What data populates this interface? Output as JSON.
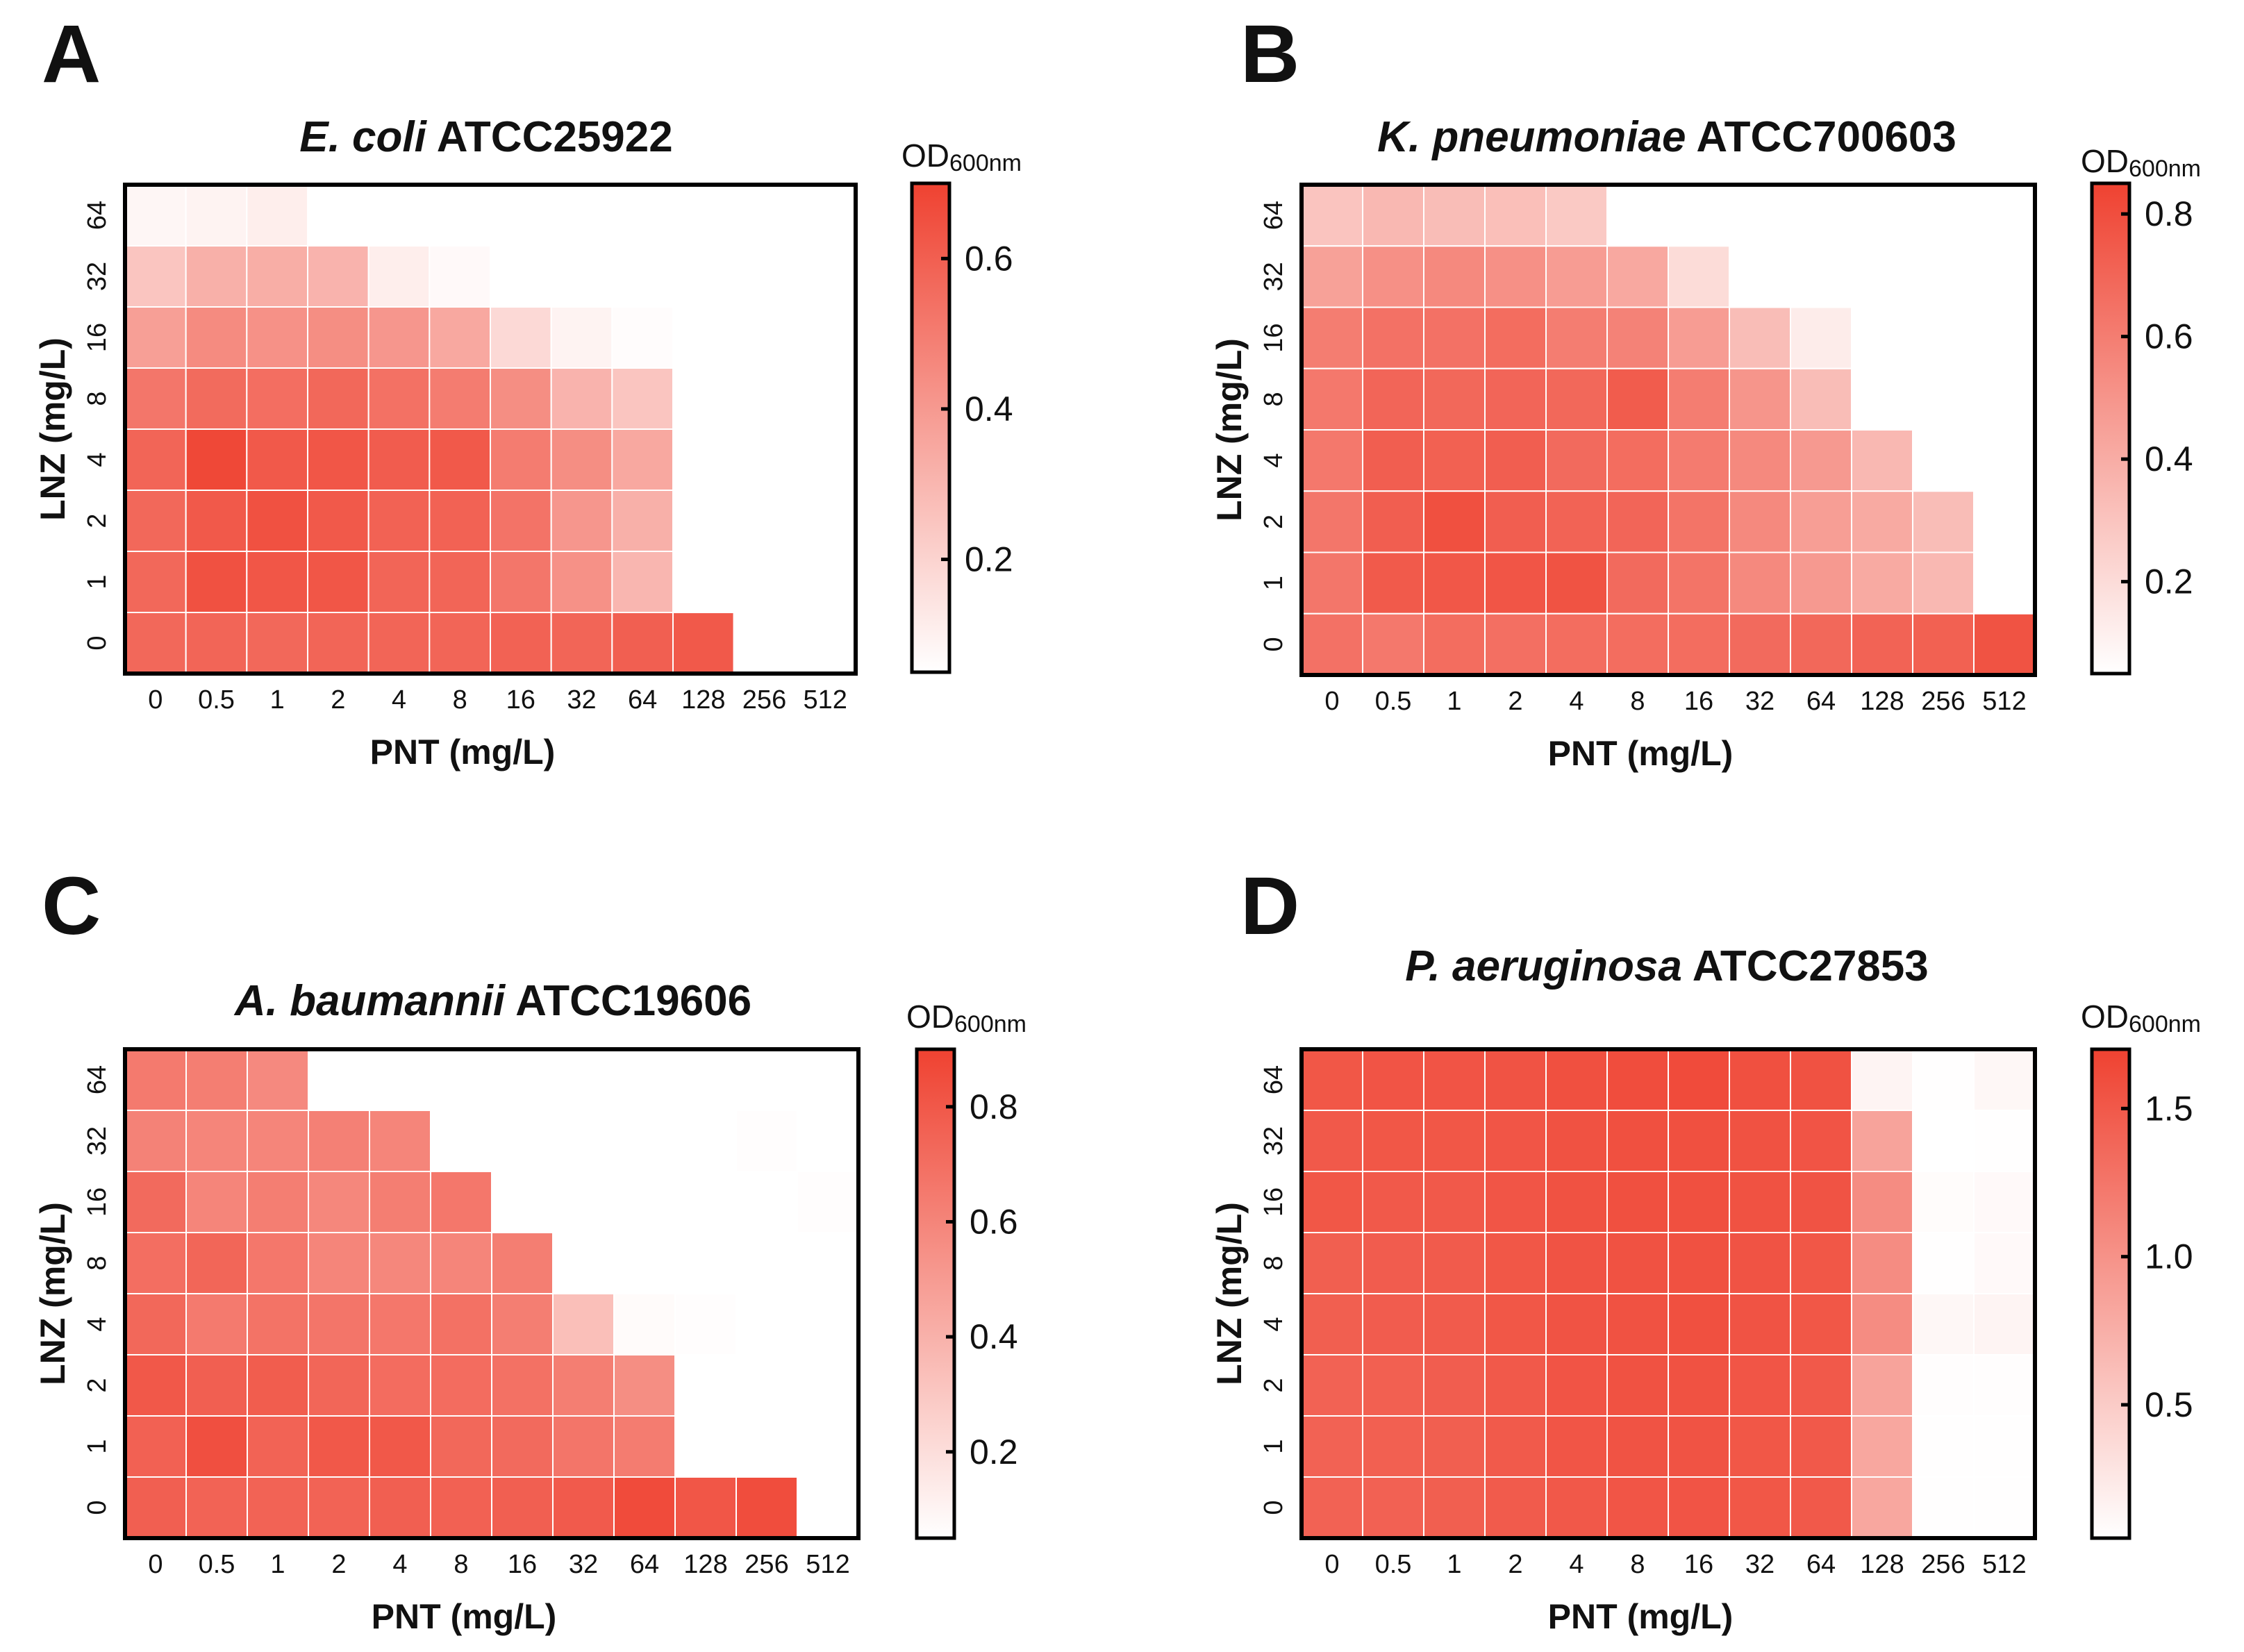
{
  "chart_data": [
    {
      "type": "heatmap",
      "panel": "A",
      "title_italic": "E. coli",
      "title_rest": " ATCC25922",
      "xlabel": "PNT (mg/L)",
      "ylabel": "LNZ (mg/L)",
      "x_categories": [
        "0",
        "0.5",
        "1",
        "2",
        "4",
        "8",
        "16",
        "32",
        "64",
        "128",
        "256",
        "512"
      ],
      "y_categories": [
        "64",
        "32",
        "16",
        "8",
        "4",
        "2",
        "1",
        "0"
      ],
      "colorbar_label": "OD",
      "colorbar_sub": "600nm",
      "colorbar_range": [
        0.05,
        0.7
      ],
      "colorbar_ticks": [
        0.2,
        0.4,
        0.6
      ],
      "values": [
        [
          0.08,
          0.09,
          0.11,
          0.05,
          0.05,
          0.05,
          0.05,
          0.05,
          0.05,
          0.05,
          0.05,
          0.05
        ],
        [
          0.25,
          0.32,
          0.33,
          0.31,
          0.11,
          0.07,
          0.05,
          0.05,
          0.05,
          0.05,
          0.05,
          0.05
        ],
        [
          0.38,
          0.45,
          0.43,
          0.44,
          0.41,
          0.35,
          0.18,
          0.09,
          0.06,
          0.05,
          0.05,
          0.05
        ],
        [
          0.52,
          0.56,
          0.55,
          0.57,
          0.54,
          0.5,
          0.44,
          0.31,
          0.25,
          0.05,
          0.05,
          0.05
        ],
        [
          0.58,
          0.68,
          0.62,
          0.63,
          0.61,
          0.62,
          0.5,
          0.44,
          0.35,
          0.05,
          0.05,
          0.05
        ],
        [
          0.57,
          0.62,
          0.65,
          0.62,
          0.59,
          0.59,
          0.53,
          0.41,
          0.32,
          0.05,
          0.05,
          0.05
        ],
        [
          0.57,
          0.65,
          0.63,
          0.63,
          0.58,
          0.58,
          0.52,
          0.43,
          0.3,
          0.05,
          0.05,
          0.05
        ],
        [
          0.57,
          0.58,
          0.57,
          0.58,
          0.58,
          0.58,
          0.59,
          0.58,
          0.6,
          0.62,
          0.05,
          0.05
        ]
      ]
    },
    {
      "type": "heatmap",
      "panel": "B",
      "title_italic": "K. pneumoniae",
      "title_rest": " ATCC700603",
      "xlabel": "PNT (mg/L)",
      "ylabel": "LNZ (mg/L)",
      "x_categories": [
        "0",
        "0.5",
        "1",
        "2",
        "4",
        "8",
        "16",
        "32",
        "64",
        "128",
        "256",
        "512"
      ],
      "y_categories": [
        "64",
        "32",
        "16",
        "8",
        "4",
        "2",
        "1",
        "0"
      ],
      "colorbar_label": "OD",
      "colorbar_sub": "600nm",
      "colorbar_range": [
        0.05,
        0.85
      ],
      "colorbar_ticks": [
        0.2,
        0.4,
        0.6,
        0.8
      ],
      "values": [
        [
          0.3,
          0.35,
          0.33,
          0.32,
          0.28,
          0.05,
          0.05,
          0.05,
          0.05,
          0.05,
          0.05,
          0.05
        ],
        [
          0.45,
          0.52,
          0.55,
          0.52,
          0.47,
          0.42,
          0.2,
          0.05,
          0.05,
          0.05,
          0.05,
          0.05
        ],
        [
          0.6,
          0.65,
          0.65,
          0.67,
          0.6,
          0.58,
          0.47,
          0.33,
          0.13,
          0.05,
          0.05,
          0.05
        ],
        [
          0.62,
          0.7,
          0.69,
          0.7,
          0.69,
          0.74,
          0.6,
          0.5,
          0.33,
          0.05,
          0.05,
          0.05
        ],
        [
          0.62,
          0.73,
          0.72,
          0.73,
          0.68,
          0.67,
          0.61,
          0.55,
          0.48,
          0.35,
          0.05,
          0.05
        ],
        [
          0.63,
          0.73,
          0.79,
          0.73,
          0.71,
          0.7,
          0.64,
          0.55,
          0.46,
          0.41,
          0.33,
          0.05
        ],
        [
          0.63,
          0.75,
          0.76,
          0.77,
          0.78,
          0.68,
          0.64,
          0.55,
          0.48,
          0.41,
          0.35,
          0.05
        ],
        [
          0.65,
          0.62,
          0.67,
          0.66,
          0.67,
          0.67,
          0.67,
          0.68,
          0.69,
          0.71,
          0.72,
          0.78
        ]
      ]
    },
    {
      "type": "heatmap",
      "panel": "C",
      "title_italic": "A. baumannii",
      "title_rest": " ATCC19606",
      "xlabel": "PNT (mg/L)",
      "ylabel": "LNZ (mg/L)",
      "x_categories": [
        "0",
        "0.5",
        "1",
        "2",
        "4",
        "8",
        "16",
        "32",
        "64",
        "128",
        "256",
        "512"
      ],
      "y_categories": [
        "64",
        "32",
        "16",
        "8",
        "4",
        "2",
        "1",
        "0"
      ],
      "colorbar_label": "OD",
      "colorbar_sub": "600nm",
      "colorbar_range": [
        0.05,
        0.9
      ],
      "colorbar_ticks": [
        0.2,
        0.4,
        0.6,
        0.8
      ],
      "values": [
        [
          0.65,
          0.63,
          0.58,
          0.05,
          0.05,
          0.05,
          0.05,
          0.05,
          0.05,
          0.05,
          0.05,
          0.05
        ],
        [
          0.61,
          0.6,
          0.6,
          0.62,
          0.6,
          0.05,
          0.05,
          0.05,
          0.05,
          0.05,
          0.06,
          0.05
        ],
        [
          0.72,
          0.6,
          0.63,
          0.59,
          0.63,
          0.66,
          0.05,
          0.05,
          0.05,
          0.05,
          0.05,
          0.06
        ],
        [
          0.7,
          0.74,
          0.66,
          0.6,
          0.59,
          0.6,
          0.63,
          0.05,
          0.05,
          0.05,
          0.05,
          0.05
        ],
        [
          0.73,
          0.65,
          0.68,
          0.67,
          0.66,
          0.69,
          0.63,
          0.34,
          0.07,
          0.06,
          0.05,
          0.05
        ],
        [
          0.8,
          0.77,
          0.78,
          0.74,
          0.71,
          0.71,
          0.69,
          0.63,
          0.56,
          0.05,
          0.05,
          0.05
        ],
        [
          0.76,
          0.84,
          0.75,
          0.8,
          0.8,
          0.73,
          0.72,
          0.67,
          0.64,
          0.05,
          0.05,
          0.05
        ],
        [
          0.77,
          0.75,
          0.75,
          0.75,
          0.77,
          0.76,
          0.77,
          0.79,
          0.86,
          0.81,
          0.85,
          0.05
        ]
      ]
    },
    {
      "type": "heatmap",
      "panel": "D",
      "title_italic": "P. aeruginosa",
      "title_rest": " ATCC27853",
      "xlabel": "PNT (mg/L)",
      "ylabel": "LNZ (mg/L)",
      "x_categories": [
        "0",
        "0.5",
        "1",
        "2",
        "4",
        "8",
        "16",
        "32",
        "64",
        "128",
        "256",
        "512"
      ],
      "y_categories": [
        "64",
        "32",
        "16",
        "8",
        "4",
        "2",
        "1",
        "0"
      ],
      "colorbar_label": "OD",
      "colorbar_sub": "600nm",
      "colorbar_range": [
        0.05,
        1.7
      ],
      "colorbar_ticks": [
        0.5,
        1.0,
        1.5
      ],
      "colorbar_tick_labels": [
        "0.5",
        "1.0",
        "1.5"
      ],
      "values": [
        [
          1.52,
          1.54,
          1.54,
          1.55,
          1.58,
          1.6,
          1.62,
          1.58,
          1.56,
          0.15,
          0.06,
          0.12
        ],
        [
          1.5,
          1.52,
          1.52,
          1.53,
          1.56,
          1.58,
          1.58,
          1.56,
          1.54,
          0.85,
          0.05,
          0.06
        ],
        [
          1.52,
          1.5,
          1.5,
          1.53,
          1.56,
          1.58,
          1.58,
          1.56,
          1.55,
          1.05,
          0.08,
          0.1
        ],
        [
          1.45,
          1.47,
          1.48,
          1.52,
          1.55,
          1.56,
          1.57,
          1.55,
          1.52,
          1.05,
          0.06,
          0.1
        ],
        [
          1.45,
          1.47,
          1.48,
          1.52,
          1.55,
          1.56,
          1.58,
          1.55,
          1.52,
          1.05,
          0.12,
          0.15
        ],
        [
          1.42,
          1.44,
          1.46,
          1.5,
          1.54,
          1.56,
          1.56,
          1.53,
          1.5,
          0.85,
          0.07,
          0.07
        ],
        [
          1.42,
          1.44,
          1.45,
          1.49,
          1.53,
          1.55,
          1.55,
          1.52,
          1.5,
          0.82,
          0.06,
          0.06
        ],
        [
          1.42,
          1.43,
          1.45,
          1.48,
          1.51,
          1.53,
          1.54,
          1.52,
          1.5,
          0.82,
          0.06,
          0.06
        ]
      ]
    }
  ]
}
